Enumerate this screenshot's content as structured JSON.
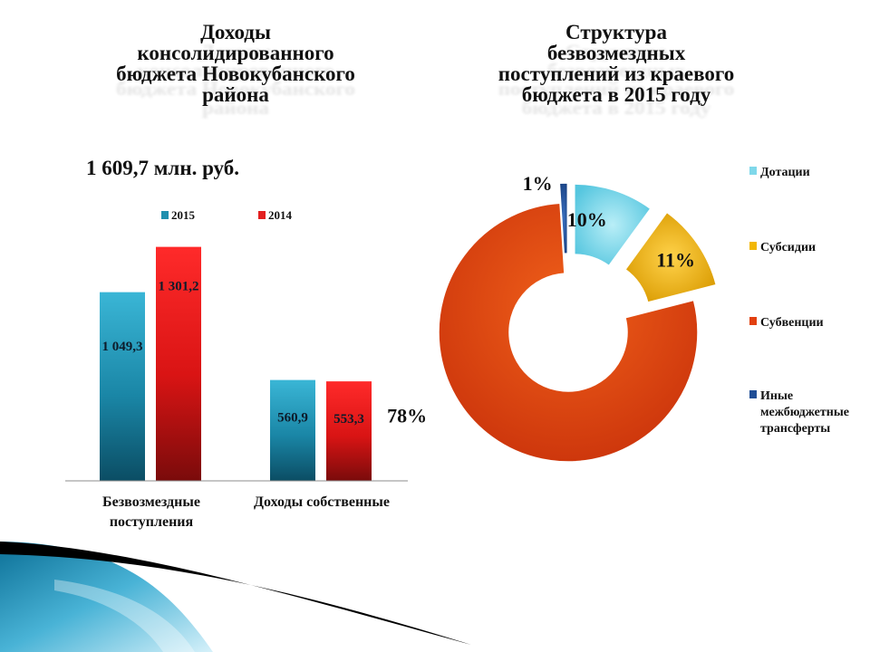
{
  "left_title": [
    "Доходы",
    "консолидированного",
    "бюджета Новокубанского",
    "района"
  ],
  "right_title": [
    "Структура",
    "безвозмездных",
    "поступлений из краевого",
    "бюджета в 2015 году"
  ],
  "total_label": "1 609,7 млн. руб.",
  "colors": {
    "series_2015": "#1f8fae",
    "series_2014": "#e31f1f",
    "dotacii": "#7fd8ea",
    "subsidii": "#f2b705",
    "subvencii": "#e2400f",
    "inye": "#1f4e96"
  },
  "chart_data": [
    {
      "type": "bar",
      "categories": [
        "Безвозмездные поступления",
        "Доходы собственные"
      ],
      "series": [
        {
          "name": "2015",
          "values": [
            1049.3,
            560.9
          ],
          "labels": [
            "1 049,3",
            "560,9"
          ]
        },
        {
          "name": "2014",
          "values": [
            1301.2,
            553.3
          ],
          "labels": [
            "1 301,2",
            "553,3"
          ]
        }
      ],
      "ylim": [
        0,
        1400
      ],
      "legend": "top",
      "grid": false
    },
    {
      "type": "pie",
      "style": "doughnut",
      "labels": [
        "Дотации",
        "Субсидии",
        "Субвенции",
        "Иные межбюджетные трансферты"
      ],
      "values": [
        10,
        11,
        78,
        1
      ],
      "value_labels": [
        "10%",
        "11%",
        "78%",
        "1%"
      ],
      "legend": "right"
    }
  ]
}
